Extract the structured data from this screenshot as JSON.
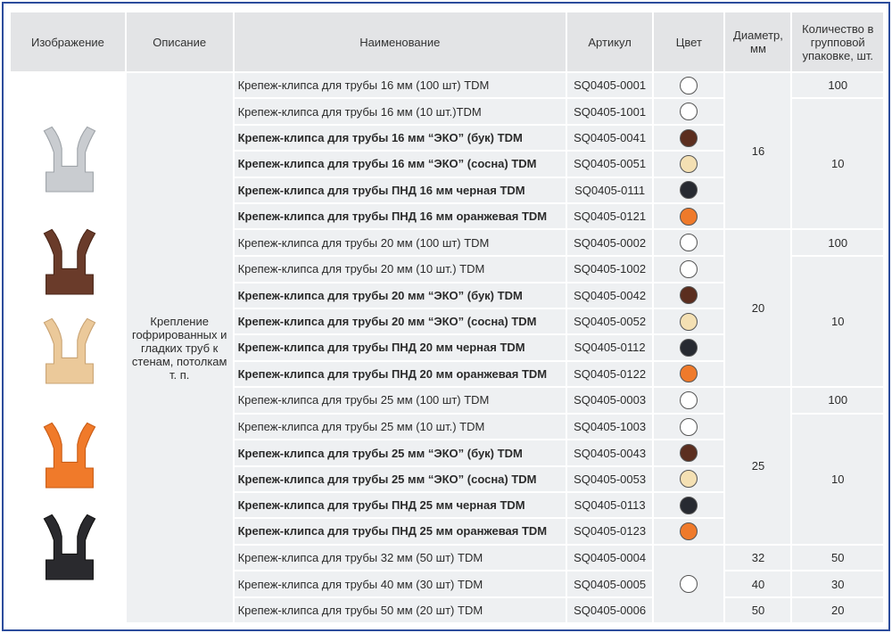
{
  "header": [
    "Изображение",
    "Описание",
    "Наименование",
    "Артикул",
    "Цвет",
    "Диаметр, мм",
    "Количество в групповой упаковке, шт."
  ],
  "description": "Крепление гофрированных и гладких труб к стенам, потолкам т. п.",
  "groups": [
    {
      "diameter": 16,
      "packs": [
        {
          "quantity": 100,
          "items": [
            {
              "name": "Крепеж-клипса для трубы 16 мм (100 шт) TDM",
              "article": "SQ0405-0001",
              "color": "#ffffff",
              "bold": false
            }
          ]
        },
        {
          "quantity": 10,
          "items": [
            {
              "name": "Крепеж-клипса для трубы 16 мм (10 шт.)TDM",
              "article": "SQ0405-1001",
              "color": "#ffffff",
              "bold": false
            },
            {
              "name": "Крепеж-клипса для трубы 16 мм “ЭКО” (бук) TDM",
              "article": "SQ0405-0041",
              "color": "#5b2e1f",
              "bold": true
            },
            {
              "name": "Крепеж-клипса для трубы 16 мм “ЭКО” (сосна) TDM",
              "article": "SQ0405-0051",
              "color": "#f4e0b3",
              "bold": true
            },
            {
              "name": "Крепеж-клипса для трубы ПНД 16 мм черная TDM",
              "article": "SQ0405-0111",
              "color": "#272a31",
              "bold": true
            },
            {
              "name": "Крепеж-клипса для трубы ПНД 16 мм оранжевая TDM",
              "article": "SQ0405-0121",
              "color": "#ef7a2b",
              "bold": true
            }
          ]
        }
      ]
    },
    {
      "diameter": 20,
      "packs": [
        {
          "quantity": 100,
          "items": [
            {
              "name": "Крепеж-клипса для трубы 20 мм (100 шт) TDM",
              "article": "SQ0405-0002",
              "color": "#ffffff",
              "bold": false
            }
          ]
        },
        {
          "quantity": 10,
          "items": [
            {
              "name": "Крепеж-клипса для трубы 20 мм (10 шт.) TDM",
              "article": "SQ0405-1002",
              "color": "#ffffff",
              "bold": false
            },
            {
              "name": "Крепеж-клипса для трубы 20 мм “ЭКО” (бук) TDM",
              "article": "SQ0405-0042",
              "color": "#5b2e1f",
              "bold": true
            },
            {
              "name": "Крепеж-клипса для трубы 20 мм “ЭКО” (сосна) TDM",
              "article": "SQ0405-0052",
              "color": "#f4e0b3",
              "bold": true
            },
            {
              "name": "Крепеж-клипса для трубы ПНД 20 мм черная TDM",
              "article": "SQ0405-0112",
              "color": "#272a31",
              "bold": true
            },
            {
              "name": "Крепеж-клипса для трубы ПНД 20 мм оранжевая TDM",
              "article": "SQ0405-0122",
              "color": "#ef7a2b",
              "bold": true
            }
          ]
        }
      ]
    },
    {
      "diameter": 25,
      "packs": [
        {
          "quantity": 100,
          "items": [
            {
              "name": "Крепеж-клипса для трубы 25 мм (100 шт) TDM",
              "article": "SQ0405-0003",
              "color": "#ffffff",
              "bold": false
            }
          ]
        },
        {
          "quantity": 10,
          "items": [
            {
              "name": "Крепеж-клипса для трубы 25 мм (10 шт.) TDM",
              "article": "SQ0405-1003",
              "color": "#ffffff",
              "bold": false
            },
            {
              "name": "Крепеж-клипса для трубы 25 мм “ЭКО” (бук) TDM",
              "article": "SQ0405-0043",
              "color": "#5b2e1f",
              "bold": true
            },
            {
              "name": "Крепеж-клипса для трубы 25 мм “ЭКО” (сосна) TDM",
              "article": "SQ0405-0053",
              "color": "#f4e0b3",
              "bold": true
            },
            {
              "name": "Крепеж-клипса для трубы ПНД 25 мм черная TDM",
              "article": "SQ0405-0113",
              "color": "#272a31",
              "bold": true
            },
            {
              "name": "Крепеж-клипса для трубы ПНД 25 мм оранжевая TDM",
              "article": "SQ0405-0123",
              "color": "#ef7a2b",
              "bold": true
            }
          ]
        }
      ]
    },
    {
      "diameter": 32,
      "packs": [
        {
          "quantity": 50,
          "items": [
            {
              "name": "Крепеж-клипса для трубы 32 мм (50 шт) TDM",
              "article": "SQ0405-0004",
              "color": "#ffffff",
              "bold": false
            }
          ]
        }
      ]
    },
    {
      "diameter": 40,
      "packs": [
        {
          "quantity": 30,
          "items": [
            {
              "name": "Крепеж-клипса для трубы 40 мм (30 шт) TDM",
              "article": "SQ0405-0005",
              "color": null,
              "bold": false
            }
          ]
        }
      ]
    },
    {
      "diameter": 50,
      "packs": [
        {
          "quantity": 20,
          "items": [
            {
              "name": "Крепеж-клипса для трубы 50 мм (20 шт) TDM",
              "article": "SQ0405-0006",
              "color": null,
              "bold": false
            }
          ]
        }
      ]
    }
  ]
}
